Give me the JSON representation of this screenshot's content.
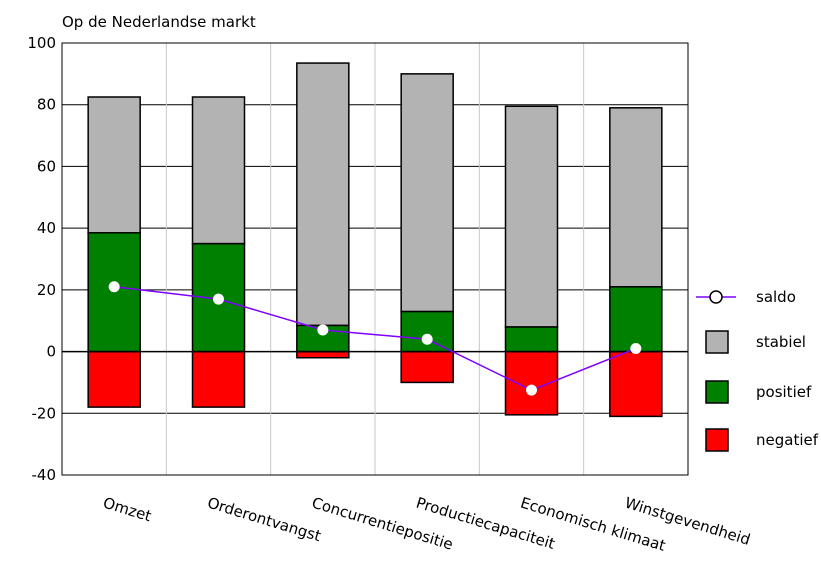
{
  "chart_data": {
    "type": "bar",
    "stacked": true,
    "title": "Op de Nederlandse markt",
    "xlabel": "",
    "ylabel": "",
    "ylim": [
      -40,
      100
    ],
    "yticks": [
      100,
      80,
      60,
      40,
      20,
      0,
      -20,
      -40
    ],
    "grid": true,
    "legend_position": "right",
    "categories": [
      "Omzet",
      "Orderontvangst",
      "Concurrentiepositie",
      "Productiecapaciteit",
      "Economisch klimaat",
      "Winstgevendheid"
    ],
    "series": [
      {
        "name": "negatief",
        "type": "bar",
        "color": "#ff0000",
        "values": [
          -18,
          -18,
          -2,
          -10,
          -20.5,
          -21
        ]
      },
      {
        "name": "positief",
        "type": "bar",
        "color": "#008000",
        "values": [
          38.5,
          35,
          8.5,
          13,
          8,
          21
        ]
      },
      {
        "name": "stabiel",
        "type": "bar",
        "color": "#b3b3b3",
        "values": [
          44,
          47.5,
          85,
          77,
          71.5,
          58
        ]
      },
      {
        "name": "saldo",
        "type": "line",
        "color": "#7f00ff",
        "values": [
          21,
          17,
          7,
          4,
          -12.5,
          1
        ]
      }
    ],
    "legend": [
      "saldo",
      "stabiel",
      "positief",
      "negatief"
    ]
  }
}
